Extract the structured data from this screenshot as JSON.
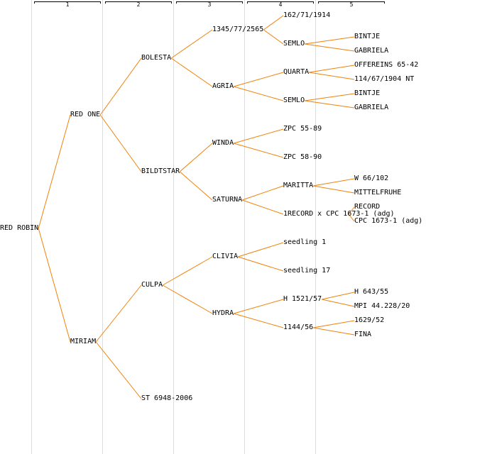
{
  "generations": [
    "1",
    "2",
    "3",
    "4",
    "5"
  ],
  "colors": {
    "edge": "#f0820a",
    "column_divider": "#dcdcdc",
    "text": "#000000"
  },
  "tree": {
    "name": "RED ROBIN",
    "children": [
      {
        "name": "RED ONE",
        "children": [
          {
            "name": "BOLESTA",
            "children": [
              {
                "name": "1345/77/2565",
                "children": [
                  {
                    "name": "162/71/1914"
                  },
                  {
                    "name": "SEMLO",
                    "children": [
                      {
                        "name": "BINTJE"
                      },
                      {
                        "name": "GABRIELA"
                      }
                    ]
                  }
                ]
              },
              {
                "name": "AGRIA",
                "children": [
                  {
                    "name": "QUARTA",
                    "children": [
                      {
                        "name": "OFFEREINS 65-42"
                      },
                      {
                        "name": "114/67/1904 NT"
                      }
                    ]
                  },
                  {
                    "name": "SEMLO",
                    "children": [
                      {
                        "name": "BINTJE"
                      },
                      {
                        "name": "GABRIELA"
                      }
                    ]
                  }
                ]
              }
            ]
          },
          {
            "name": "BILDTSTAR",
            "children": [
              {
                "name": "WINDA",
                "children": [
                  {
                    "name": "ZPC 55-89"
                  },
                  {
                    "name": "ZPC 58-90"
                  }
                ]
              },
              {
                "name": "SATURNA",
                "children": [
                  {
                    "name": "MARITTA",
                    "children": [
                      {
                        "name": "W 66/102"
                      },
                      {
                        "name": "MITTELFRUHE"
                      }
                    ]
                  },
                  {
                    "name": "1RECORD x CPC 1673-1 (adg)",
                    "children": [
                      {
                        "name": "RECORD"
                      },
                      {
                        "name": "CPC 1673-1 (adg)"
                      }
                    ]
                  }
                ]
              }
            ]
          }
        ]
      },
      {
        "name": "MIRIAM",
        "children": [
          {
            "name": "CULPA",
            "children": [
              {
                "name": "CLIVIA",
                "children": [
                  {
                    "name": "seedling 1"
                  },
                  {
                    "name": "seedling 17"
                  }
                ]
              },
              {
                "name": "HYDRA",
                "children": [
                  {
                    "name": "H 1521/57",
                    "children": [
                      {
                        "name": "H 643/55"
                      },
                      {
                        "name": "MPI 44.228/20"
                      }
                    ]
                  },
                  {
                    "name": "1144/56",
                    "children": [
                      {
                        "name": "1629/52"
                      },
                      {
                        "name": "FINA"
                      }
                    ]
                  }
                ]
              }
            ]
          },
          {
            "name": "ST 6948-2006"
          }
        ]
      }
    ]
  }
}
